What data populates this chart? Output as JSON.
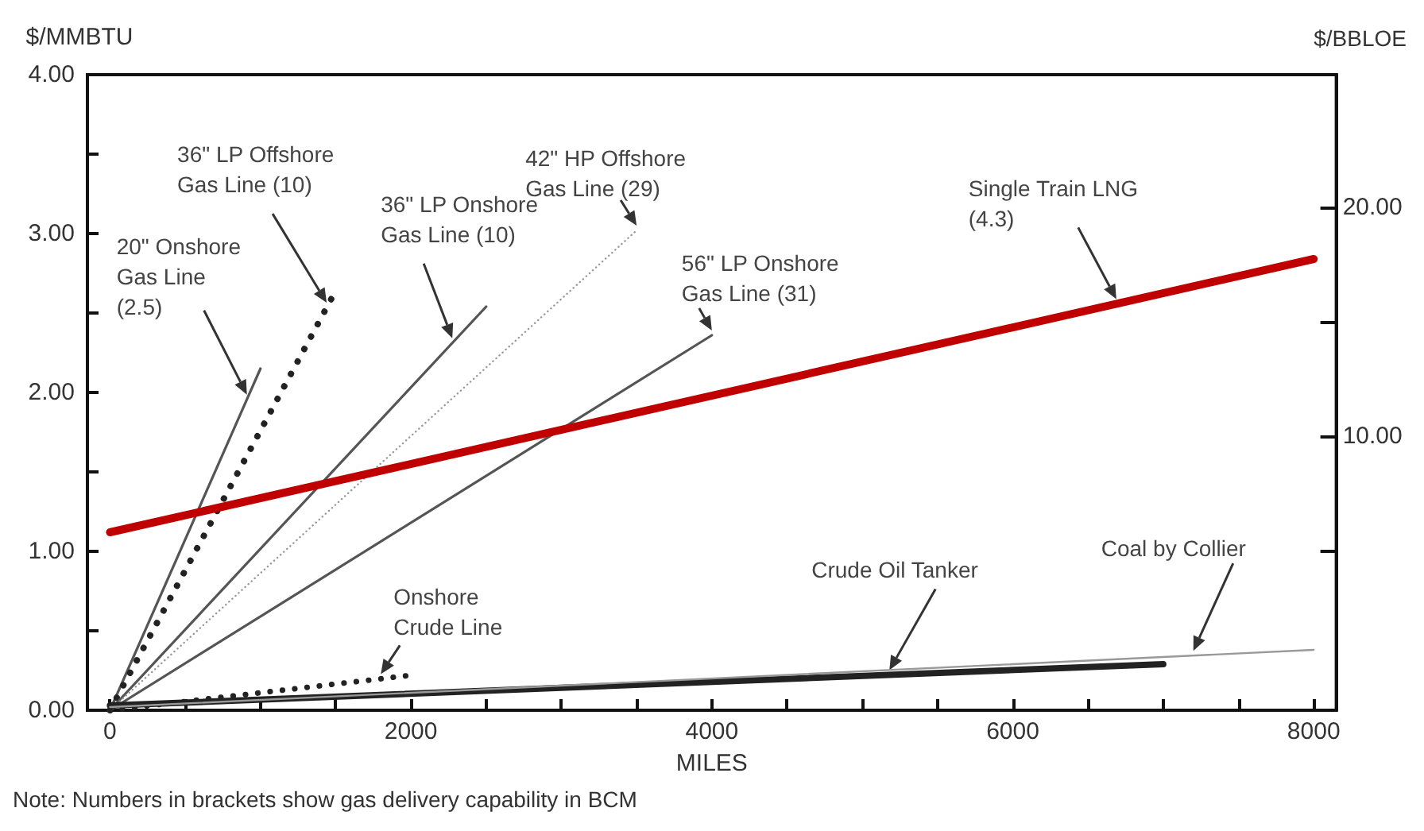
{
  "chart_data": {
    "type": "line",
    "ylabel": "$/MMBTU",
    "y2label": "$/BBLOE",
    "xlabel": "MILES",
    "xlim": [
      -150,
      8150
    ],
    "ylim": [
      0,
      4
    ],
    "y2lim": [
      -2,
      25.8
    ],
    "xticks": [
      0,
      {
        "value": 500,
        "label": null
      },
      {
        "value": 1000,
        "label": null
      },
      {
        "value": 1500,
        "label": null
      },
      2000,
      {
        "value": 2500,
        "label": null
      },
      {
        "value": 3000,
        "label": null
      },
      {
        "value": 3500,
        "label": null
      },
      4000,
      {
        "value": 4500,
        "label": null
      },
      {
        "value": 5000,
        "label": null
      },
      {
        "value": 5500,
        "label": null
      },
      6000,
      {
        "value": 6500,
        "label": null
      },
      {
        "value": 7000,
        "label": null
      },
      {
        "value": 7500,
        "label": null
      },
      8000
    ],
    "yticks": [
      {
        "value": 0,
        "label": "0.00"
      },
      {
        "value": 0.5,
        "label": null
      },
      {
        "value": 1,
        "label": "1.00"
      },
      {
        "value": 1.5,
        "label": null
      },
      {
        "value": 2,
        "label": "2.00"
      },
      {
        "value": 2.5,
        "label": null
      },
      {
        "value": 3,
        "label": "3.00"
      },
      {
        "value": 3.5,
        "label": null
      },
      {
        "value": 4,
        "label": "4.00"
      }
    ],
    "y2ticks": [
      {
        "value": 5,
        "label": null
      },
      {
        "value": 10,
        "label": "10.00"
      },
      {
        "value": 15,
        "label": null
      },
      {
        "value": 20,
        "label": "20.00"
      }
    ],
    "grid": false,
    "legend": false,
    "marker": "none",
    "series": [
      {
        "name": "20\" Onshore\nGas Line\n(2.5)",
        "color": "#555555",
        "line_style": "solid",
        "x": [
          0,
          1000
        ],
        "values": [
          0,
          2.15
        ]
      },
      {
        "name": "36\" LP Offshore\nGas Line (10)",
        "color": "#222222",
        "line_style": "dotted",
        "x": [
          0,
          1500
        ],
        "values": [
          0,
          2.64
        ]
      },
      {
        "name": "36\" LP Onshore\nGas Line (10)",
        "color": "#555555",
        "line_style": "solid",
        "x": [
          0,
          2500
        ],
        "values": [
          0,
          2.54
        ]
      },
      {
        "name": "42\" HP Offshore\nGas Line (29)",
        "color": "#999999",
        "line_style": "dotted",
        "x": [
          0,
          3500
        ],
        "values": [
          0,
          3.02
        ]
      },
      {
        "name": "56\" LP Onshore\nGas Line (31)",
        "color": "#555555",
        "line_style": "solid",
        "x": [
          0,
          4000
        ],
        "values": [
          0,
          2.36
        ]
      },
      {
        "name": "Single Train LNG\n(4.3)",
        "color": "#c00000",
        "line_style": "solid",
        "x": [
          0,
          8000
        ],
        "values": [
          1.12,
          2.84
        ]
      },
      {
        "name": "Onshore\nCrude Line",
        "color": "#222222",
        "line_style": "dotted",
        "x": [
          0,
          2000
        ],
        "values": [
          0,
          0.22
        ]
      },
      {
        "name": "Crude Oil Tanker",
        "color": "#222222",
        "line_style": "solid",
        "x": [
          0,
          7000
        ],
        "values": [
          0.03,
          0.29
        ]
      },
      {
        "name": "Coal by Collier",
        "color": "#999999",
        "line_style": "solid",
        "x": [
          0,
          8000
        ],
        "values": [
          0.02,
          0.38
        ]
      }
    ],
    "annotations": [
      "Note: Numbers in brackets show gas delivery capability in BCM"
    ]
  }
}
